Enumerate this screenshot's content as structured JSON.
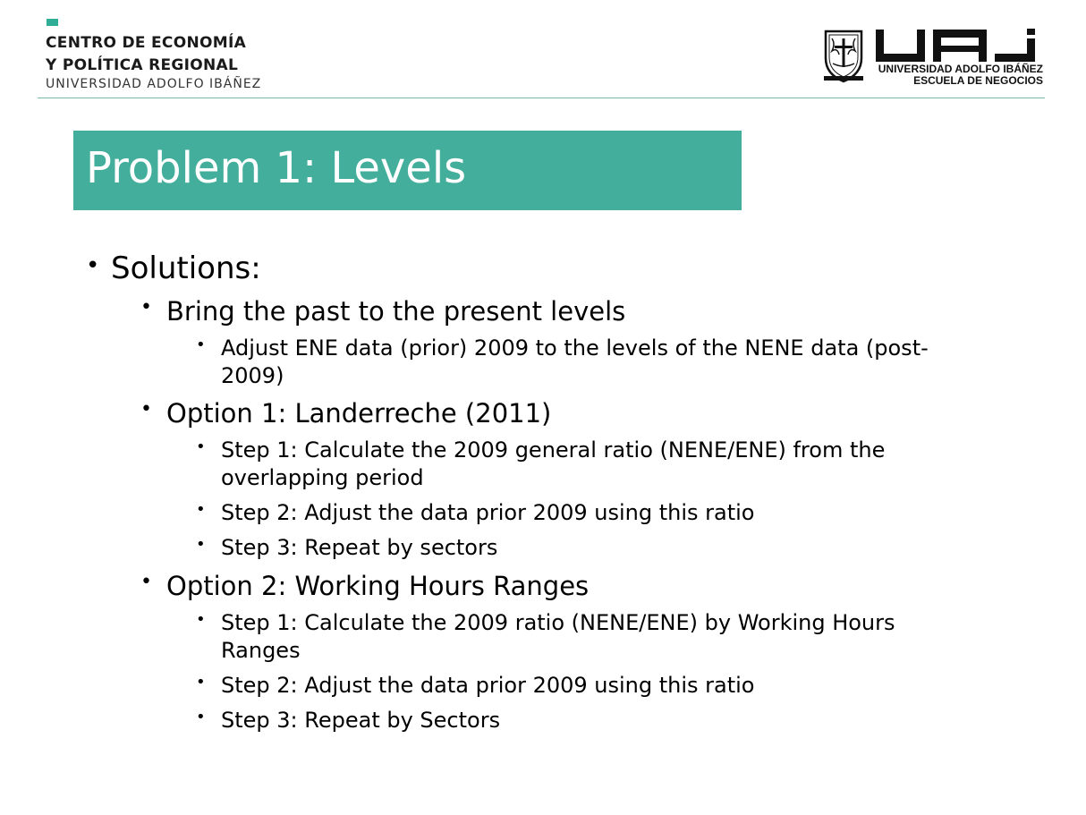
{
  "header": {
    "center_line1": "CENTRO DE ECONOMÍA",
    "center_line2": "Y POLÍTICA REGIONAL",
    "center_sub": "UNIVERSIDAD ADOLFO IBÁÑEZ",
    "uai_name_line1": "UNIVERSIDAD ADOLFO IBÁÑEZ",
    "uai_name_line2": "ESCUELA DE NEGOCIOS",
    "accent_color": "#43ae9b"
  },
  "slide": {
    "title": "Problem 1: Levels",
    "bullet_char": "•",
    "solutions": "Solutions:",
    "bring_past": "Bring the past to the present levels",
    "adjust_ene_line1": "Adjust ENE data (prior) 2009 to the levels of the NENE data (post-",
    "adjust_ene_line2": "2009)",
    "option1": "Option 1: Landerreche (2011)",
    "opt1_step1_line1": "Step 1: Calculate the 2009 general ratio (NENE/ENE) from the",
    "opt1_step1_line2": "overlapping period",
    "opt1_step2": "Step 2: Adjust the data prior 2009 using this ratio",
    "opt1_step3": "Step 3: Repeat by sectors",
    "option2": "Option 2: Working Hours Ranges",
    "opt2_step1_line1": "Step 1: Calculate the 2009 ratio (NENE/ENE) by Working Hours",
    "opt2_step1_line2": "Ranges",
    "opt2_step2": "Step 2: Adjust the data prior 2009 using this ratio",
    "opt2_step3": "Step 3: Repeat by Sectors"
  }
}
